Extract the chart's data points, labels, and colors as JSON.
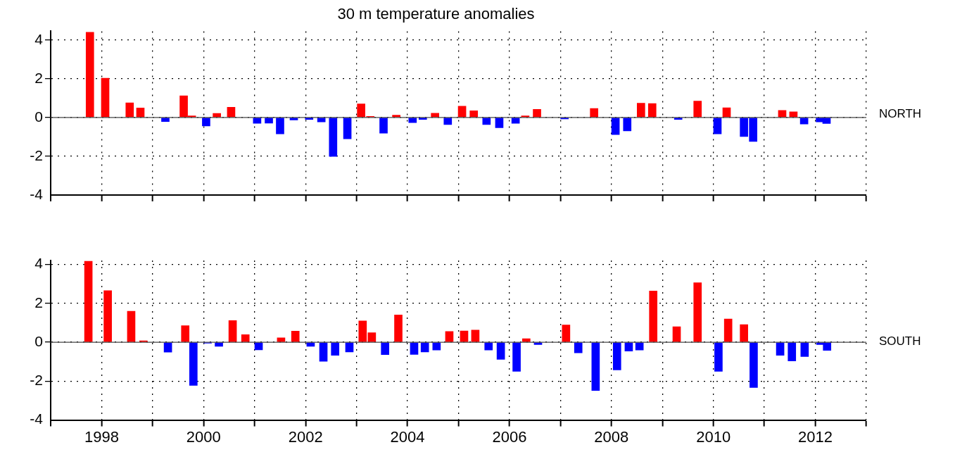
{
  "chart_data": [
    {
      "type": "bar",
      "title": "30 m temperature anomalies",
      "annotations": [
        "NORTH"
      ],
      "x": [
        1997.77,
        1998.07,
        1998.55,
        1998.76,
        1999.25,
        1999.61,
        1999.77,
        2000.05,
        2000.26,
        2000.54,
        2001.05,
        2001.28,
        2001.5,
        2001.77,
        2002.07,
        2002.31,
        2002.54,
        2002.82,
        2003.09,
        2003.27,
        2003.53,
        2003.78,
        2004.1,
        2004.3,
        2004.54,
        2004.79,
        2005.07,
        2005.3,
        2005.55,
        2005.8,
        2006.12,
        2006.31,
        2006.54,
        2007.08,
        2007.66,
        2008.08,
        2008.31,
        2008.58,
        2008.8,
        2009.31,
        2009.69,
        2010.08,
        2010.26,
        2010.6,
        2010.78,
        2011.35,
        2011.57,
        2011.78,
        2012.09,
        2012.22
      ],
      "values": [
        4.4,
        2.03,
        0.76,
        0.49,
        -0.21,
        1.12,
        0.08,
        -0.44,
        0.21,
        0.53,
        -0.3,
        -0.29,
        -0.85,
        -0.13,
        -0.1,
        -0.23,
        -2.01,
        -1.1,
        0.7,
        0.06,
        -0.81,
        0.12,
        -0.26,
        -0.1,
        0.22,
        -0.36,
        0.58,
        0.35,
        -0.36,
        -0.53,
        -0.3,
        0.08,
        0.42,
        -0.07,
        0.47,
        -0.88,
        -0.69,
        0.74,
        0.72,
        -0.1,
        0.85,
        -0.85,
        0.5,
        -0.98,
        -1.24,
        0.37,
        0.29,
        -0.34,
        -0.23,
        -0.31
      ],
      "colors": [
        "#ff0000",
        "#ff0000",
        "#ff0000",
        "#ff0000",
        "#0000ff",
        "#ff0000",
        "#ff0000",
        "#0000ff",
        "#ff0000",
        "#ff0000",
        "#0000ff",
        "#0000ff",
        "#0000ff",
        "#0000ff",
        "#0000ff",
        "#0000ff",
        "#0000ff",
        "#0000ff",
        "#ff0000",
        "#ff0000",
        "#0000ff",
        "#ff0000",
        "#0000ff",
        "#0000ff",
        "#ff0000",
        "#0000ff",
        "#ff0000",
        "#ff0000",
        "#0000ff",
        "#0000ff",
        "#0000ff",
        "#ff0000",
        "#ff0000",
        "#0000ff",
        "#ff0000",
        "#0000ff",
        "#0000ff",
        "#ff0000",
        "#ff0000",
        "#0000ff",
        "#ff0000",
        "#0000ff",
        "#ff0000",
        "#0000ff",
        "#0000ff",
        "#ff0000",
        "#ff0000",
        "#0000ff",
        "#0000ff",
        "#0000ff"
      ],
      "xlim": [
        1997,
        2013
      ],
      "xticks": [
        {
          "value": 1997,
          "label": null
        },
        {
          "value": 1998,
          "label": null
        },
        {
          "value": 1999,
          "label": null
        },
        {
          "value": 2000,
          "label": null
        },
        {
          "value": 2001,
          "label": null
        },
        {
          "value": 2002,
          "label": null
        },
        {
          "value": 2003,
          "label": null
        },
        {
          "value": 2004,
          "label": null
        },
        {
          "value": 2005,
          "label": null
        },
        {
          "value": 2006,
          "label": null
        },
        {
          "value": 2007,
          "label": null
        },
        {
          "value": 2008,
          "label": null
        },
        {
          "value": 2009,
          "label": null
        },
        {
          "value": 2010,
          "label": null
        },
        {
          "value": 2011,
          "label": null
        },
        {
          "value": 2012,
          "label": null
        },
        {
          "value": 2013,
          "label": null
        }
      ],
      "ylim": [
        -4,
        4.45
      ],
      "yticks": [
        -4,
        -2,
        0,
        2,
        4
      ],
      "grid": true,
      "legend": false,
      "tick_labels": "y"
    },
    {
      "type": "bar",
      "annotations": [
        "SOUTH"
      ],
      "x": [
        1997.74,
        1998.12,
        1998.58,
        1998.82,
        1999.3,
        1999.64,
        1999.8,
        2000.08,
        2000.3,
        2000.57,
        2000.82,
        2001.08,
        2001.52,
        2001.8,
        2002.1,
        2002.35,
        2002.58,
        2002.86,
        2003.12,
        2003.3,
        2003.56,
        2003.82,
        2004.13,
        2004.34,
        2004.57,
        2004.82,
        2005.11,
        2005.33,
        2005.59,
        2005.83,
        2006.14,
        2006.33,
        2006.56,
        2007.11,
        2007.35,
        2007.69,
        2008.11,
        2008.34,
        2008.55,
        2008.82,
        2009.28,
        2009.69,
        2010.1,
        2010.29,
        2010.6,
        2010.79,
        2011.31,
        2011.54,
        2011.79,
        2012.1,
        2012.23
      ],
      "values": [
        4.16,
        2.65,
        1.59,
        0.07,
        -0.51,
        0.85,
        -2.22,
        -0.05,
        -0.21,
        1.11,
        0.39,
        -0.39,
        0.23,
        0.57,
        -0.21,
        -0.98,
        -0.67,
        -0.5,
        1.09,
        0.49,
        -0.64,
        1.4,
        -0.63,
        -0.5,
        -0.4,
        0.55,
        0.58,
        0.62,
        -0.4,
        -0.88,
        -1.5,
        0.18,
        -0.12,
        0.89,
        -0.55,
        -2.48,
        -1.42,
        -0.46,
        -0.4,
        2.63,
        0.8,
        3.06,
        -1.5,
        1.19,
        0.9,
        -2.33,
        -0.67,
        -0.96,
        -0.74,
        -0.12,
        -0.42
      ],
      "colors": [
        "#ff0000",
        "#ff0000",
        "#ff0000",
        "#ff0000",
        "#0000ff",
        "#ff0000",
        "#0000ff",
        "#0000ff",
        "#0000ff",
        "#ff0000",
        "#ff0000",
        "#0000ff",
        "#ff0000",
        "#ff0000",
        "#0000ff",
        "#0000ff",
        "#0000ff",
        "#0000ff",
        "#ff0000",
        "#ff0000",
        "#0000ff",
        "#ff0000",
        "#0000ff",
        "#0000ff",
        "#0000ff",
        "#ff0000",
        "#ff0000",
        "#ff0000",
        "#0000ff",
        "#0000ff",
        "#0000ff",
        "#ff0000",
        "#0000ff",
        "#ff0000",
        "#0000ff",
        "#0000ff",
        "#0000ff",
        "#0000ff",
        "#0000ff",
        "#ff0000",
        "#ff0000",
        "#ff0000",
        "#0000ff",
        "#ff0000",
        "#ff0000",
        "#0000ff",
        "#0000ff",
        "#0000ff",
        "#0000ff",
        "#0000ff",
        "#0000ff"
      ],
      "xlim": [
        1997,
        2013
      ],
      "xticks": [
        {
          "value": 1997,
          "label": null
        },
        1998,
        {
          "value": 1999,
          "label": null
        },
        2000,
        {
          "value": 2001,
          "label": null
        },
        2002,
        {
          "value": 2003,
          "label": null
        },
        2004,
        {
          "value": 2005,
          "label": null
        },
        2006,
        {
          "value": 2007,
          "label": null
        },
        2008,
        {
          "value": 2009,
          "label": null
        },
        2010,
        {
          "value": 2011,
          "label": null
        },
        2012,
        {
          "value": 2013,
          "label": null
        }
      ],
      "ylim": [
        -4,
        4.2
      ],
      "yticks": [
        -4,
        -2,
        0,
        2,
        4
      ],
      "grid": true,
      "legend": false
    }
  ]
}
